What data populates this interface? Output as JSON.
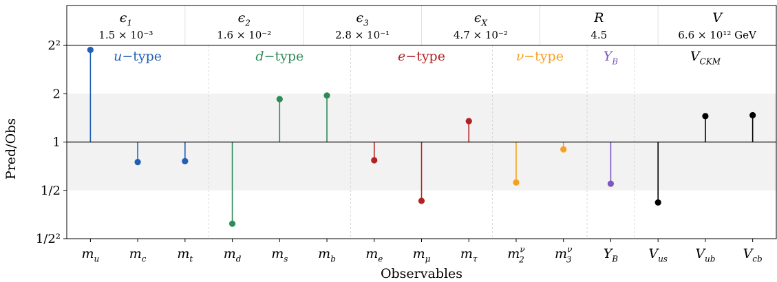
{
  "chart_data": {
    "type": "lollipop",
    "xlabel": "Observables",
    "ylabel": "Pred/Obs",
    "yscale": "log2",
    "ylim": [
      0.25,
      4
    ],
    "yticks": [
      {
        "value": 0.25,
        "label": "1/2²"
      },
      {
        "value": 0.5,
        "label": "1/2"
      },
      {
        "value": 1,
        "label": "1"
      },
      {
        "value": 2,
        "label": "2"
      },
      {
        "value": 4,
        "label": "2²"
      }
    ],
    "band": [
      0.5,
      2
    ],
    "baseline": 1,
    "parameters": [
      {
        "name": "ϵ₁",
        "value": "1.5 × 10⁻³"
      },
      {
        "name": "ϵ₂",
        "value": "1.6 × 10⁻²"
      },
      {
        "name": "ϵ₃",
        "value": "2.8 × 10⁻¹"
      },
      {
        "name": "ϵ_X",
        "value": "4.7 × 10⁻²"
      },
      {
        "name": "R",
        "value": "4.5"
      },
      {
        "name": "V",
        "value": "6.6 × 10¹² GeV"
      }
    ],
    "groups": [
      {
        "label": "u−type",
        "color": "#1f5fb4",
        "start": 0,
        "end": 2
      },
      {
        "label": "d−type",
        "color": "#2e8b57",
        "start": 3,
        "end": 5
      },
      {
        "label": "e−type",
        "color": "#b22222",
        "start": 6,
        "end": 8
      },
      {
        "label": "ν−type",
        "color": "#f5a020",
        "start": 9,
        "end": 10
      },
      {
        "label": "Y_B",
        "color": "#7e57c2",
        "start": 11,
        "end": 11
      },
      {
        "label": "V_CKM",
        "color": "#000000",
        "start": 12,
        "end": 14
      }
    ],
    "categories": [
      "m_u",
      "m_c",
      "m_t",
      "m_d",
      "m_s",
      "m_b",
      "m_e",
      "m_μ",
      "m_τ",
      "m₂^ν",
      "m₃^ν",
      "Y_B",
      "V_us",
      "V_ub",
      "V_cb"
    ],
    "values": [
      3.75,
      0.75,
      0.76,
      0.31,
      1.85,
      1.95,
      0.77,
      0.43,
      1.35,
      0.56,
      0.9,
      0.55,
      0.42,
      1.45,
      1.47
    ]
  }
}
